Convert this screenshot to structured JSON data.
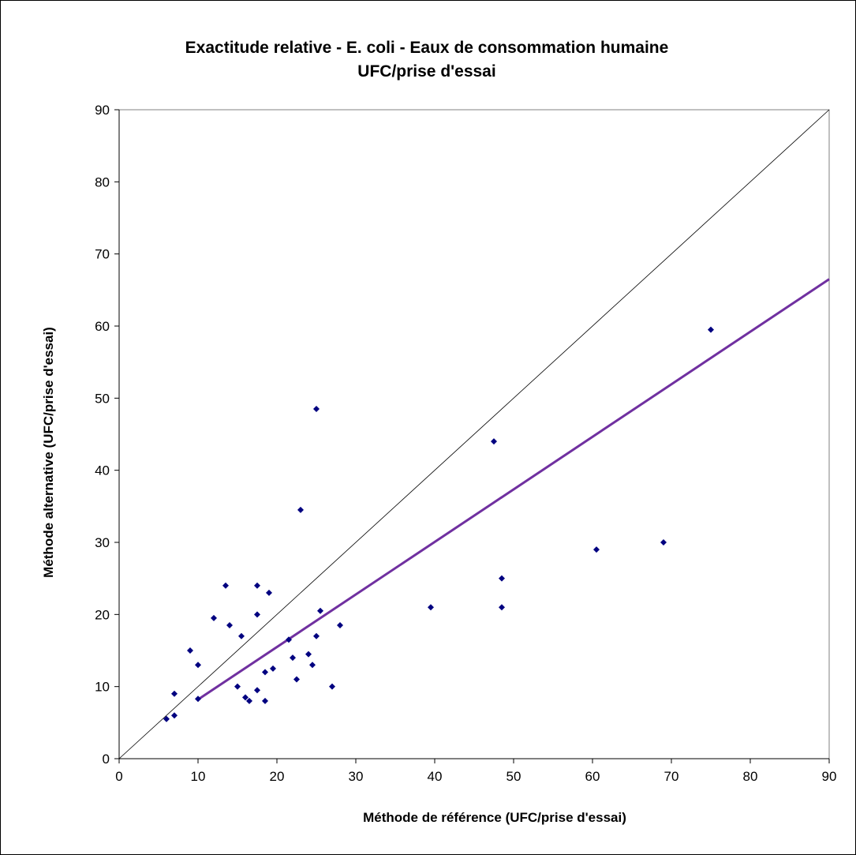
{
  "chart_data": {
    "type": "scatter",
    "title": [
      "Exactitude relative - E. coli - Eaux de consommation humaine",
      "UFC/prise d'essai"
    ],
    "xlabel": "Méthode de référence (UFC/prise d'essai)",
    "ylabel": "Méthode alternative (UFC/prise d'essai)",
    "xlim": [
      0,
      90
    ],
    "ylim": [
      0,
      90
    ],
    "xticks": [
      0,
      10,
      20,
      30,
      40,
      50,
      60,
      70,
      80,
      90
    ],
    "yticks": [
      0,
      10,
      20,
      30,
      40,
      50,
      60,
      70,
      80,
      90
    ],
    "grid": false,
    "legend": "none",
    "point_color": "#000080",
    "points": [
      [
        6,
        5.5
      ],
      [
        7,
        6
      ],
      [
        7,
        9
      ],
      [
        9,
        15
      ],
      [
        10,
        13
      ],
      [
        10,
        8.3
      ],
      [
        12,
        19.5
      ],
      [
        13.5,
        24
      ],
      [
        14,
        18.5
      ],
      [
        15,
        10
      ],
      [
        15.5,
        17
      ],
      [
        16,
        8.5
      ],
      [
        16.5,
        8
      ],
      [
        17.5,
        24
      ],
      [
        17.5,
        20
      ],
      [
        17.5,
        9.5
      ],
      [
        18.5,
        12
      ],
      [
        18.5,
        8
      ],
      [
        19,
        23
      ],
      [
        19.5,
        12.5
      ],
      [
        21.5,
        16.5
      ],
      [
        22,
        14
      ],
      [
        22.5,
        11
      ],
      [
        23,
        34.5
      ],
      [
        24,
        14.5
      ],
      [
        24.5,
        13
      ],
      [
        25,
        48.5
      ],
      [
        25,
        17
      ],
      [
        25.5,
        20.5
      ],
      [
        27,
        10
      ],
      [
        28,
        18.5
      ],
      [
        39.5,
        21
      ],
      [
        47.5,
        44
      ],
      [
        48.5,
        25
      ],
      [
        48.5,
        21
      ],
      [
        60.5,
        29
      ],
      [
        69,
        30
      ],
      [
        75,
        59.5
      ]
    ],
    "reference_line": {
      "x": [
        0,
        90
      ],
      "y": [
        0,
        90
      ],
      "color": "#000000"
    },
    "regression_line": {
      "x": [
        10,
        90
      ],
      "y": [
        8.2,
        66.5
      ],
      "color": "#7030A0"
    }
  }
}
